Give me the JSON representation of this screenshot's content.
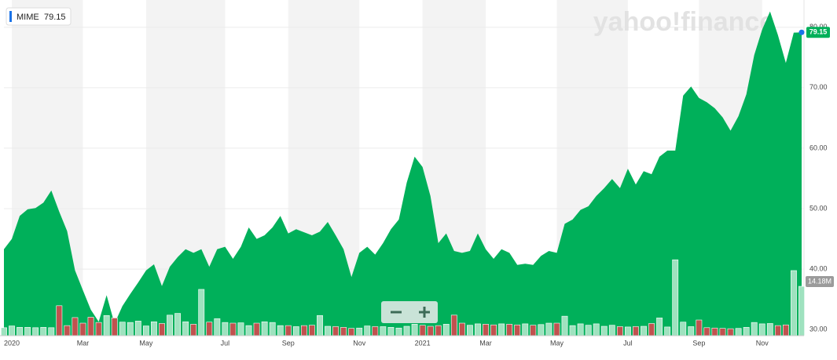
{
  "chart_data": {
    "type": "area",
    "watermark": "yahoo!finance",
    "categories": [
      null,
      "2020",
      null,
      null,
      null,
      null,
      null,
      null,
      null,
      null,
      "Mar",
      null,
      null,
      null,
      null,
      null,
      null,
      null,
      "May",
      null,
      null,
      null,
      null,
      null,
      null,
      null,
      null,
      null,
      "Jul",
      null,
      null,
      null,
      null,
      null,
      null,
      null,
      "Sep",
      null,
      null,
      null,
      null,
      null,
      null,
      null,
      null,
      "Nov",
      null,
      null,
      null,
      null,
      null,
      null,
      null,
      "2021",
      null,
      null,
      null,
      null,
      null,
      null,
      null,
      "Mar",
      null,
      null,
      null,
      null,
      null,
      null,
      null,
      null,
      "May",
      null,
      null,
      null,
      null,
      null,
      null,
      null,
      null,
      "Jul",
      null,
      null,
      null,
      null,
      null,
      null,
      null,
      null,
      "Sep",
      null,
      null,
      null,
      null,
      null,
      null,
      null,
      "Nov",
      null,
      null,
      null,
      null,
      null
    ],
    "series": [
      {
        "name": "MIME",
        "color": "#00b05a",
        "values": [
          43.3,
          45,
          48.8,
          49.9,
          50.1,
          51,
          53,
          49.5,
          46.3,
          39.8,
          36.5,
          33.3,
          31.3,
          35.7,
          31,
          33.9,
          35.9,
          37.8,
          39.8,
          40.8,
          37.2,
          40.4,
          42,
          43.3,
          42.7,
          43.3,
          40.4,
          43.3,
          43.7,
          41.7,
          43.7,
          46.9,
          45,
          45.6,
          46.9,
          48.8,
          45.9,
          46.6,
          46.1,
          45.6,
          46.2,
          47.8,
          45.6,
          43.3,
          38.7,
          42.7,
          43.7,
          42.4,
          44.3,
          46.6,
          48.2,
          54.3,
          58.6,
          56.9,
          52.1,
          44.3,
          45.9,
          43,
          42.7,
          43,
          45.9,
          43.3,
          41.7,
          43.3,
          42.7,
          40.7,
          40.9,
          40.7,
          42.2,
          43,
          42.7,
          47.5,
          48.2,
          49.8,
          50.4,
          52.1,
          53.4,
          54.9,
          53.4,
          56.6,
          54,
          56.2,
          55.7,
          58.6,
          59.6,
          59.6,
          68.7,
          70.2,
          68.3,
          67.6,
          66.6,
          65.1,
          62.9,
          65.3,
          68.9,
          75.4,
          79.6,
          82.6,
          78.7,
          74.1,
          79.1,
          79.15
        ],
        "value_labels": [
          null,
          null,
          null,
          null,
          null,
          null,
          null,
          null,
          null,
          null,
          null,
          null,
          null,
          null,
          null,
          null,
          null,
          null,
          null,
          null,
          null,
          null,
          null,
          null,
          null,
          null,
          null,
          null,
          null,
          null,
          null,
          null,
          null,
          null,
          null,
          null,
          null,
          null,
          null,
          null,
          null,
          null,
          null,
          null,
          null,
          null,
          null,
          null,
          null,
          null,
          null,
          null,
          null,
          null,
          null,
          null,
          null,
          null,
          null,
          null,
          null,
          null,
          null,
          null,
          null,
          null,
          null,
          null,
          null,
          null,
          null,
          null,
          null,
          null,
          null,
          null,
          null,
          null,
          null,
          null,
          null,
          null,
          null,
          null,
          null,
          null,
          null,
          null,
          null,
          null,
          null,
          null,
          null,
          null,
          null,
          null,
          null,
          null,
          null,
          null,
          null,
          "79.15"
        ]
      },
      {
        "type": "bar",
        "axis": "y2",
        "up_color": "#9fe2bf",
        "down_color": "#c0524f",
        "values": [
          2.3,
          2.8,
          2.4,
          2.4,
          2.3,
          2.4,
          2.3,
          8.6,
          2.9,
          5.2,
          3.6,
          5.3,
          3.8,
          5.8,
          5.1,
          3.9,
          3.8,
          4.2,
          2.8,
          4.0,
          3.5,
          5.9,
          6.4,
          4.0,
          3.3,
          13.3,
          3.9,
          4.9,
          3.8,
          3.6,
          3.7,
          2.9,
          3.6,
          4.0,
          3.8,
          2.9,
          2.9,
          2.6,
          2.9,
          3.0,
          5.8,
          2.7,
          2.6,
          2.4,
          2.1,
          2.2,
          2.8,
          2.6,
          2.6,
          2.4,
          2.2,
          2.7,
          3.3,
          3.0,
          2.7,
          2.9,
          3.3,
          5.9,
          3.6,
          3.0,
          3.4,
          3.3,
          3.1,
          3.4,
          3.3,
          3.1,
          3.4,
          3.0,
          3.2,
          3.6,
          3.6,
          5.6,
          2.9,
          3.4,
          3.0,
          3.4,
          2.7,
          3.0,
          2.6,
          2.5,
          2.6,
          2.7,
          3.5,
          5.1,
          2.5,
          21.8,
          3.9,
          2.6,
          4.5,
          2.3,
          2.2,
          2.1,
          2.0,
          2.1,
          2.4,
          3.8,
          3.4,
          3.5,
          2.9,
          3.1,
          18.7,
          14.18
        ],
        "value_labels": [
          null,
          null,
          null,
          null,
          null,
          null,
          null,
          null,
          null,
          null,
          null,
          null,
          null,
          null,
          null,
          null,
          null,
          null,
          null,
          null,
          null,
          null,
          null,
          null,
          null,
          null,
          null,
          null,
          null,
          null,
          null,
          null,
          null,
          null,
          null,
          null,
          null,
          null,
          null,
          null,
          null,
          null,
          null,
          null,
          null,
          null,
          null,
          null,
          null,
          null,
          null,
          null,
          null,
          null,
          null,
          null,
          null,
          null,
          null,
          null,
          null,
          null,
          null,
          null,
          null,
          null,
          null,
          null,
          null,
          null,
          null,
          null,
          null,
          null,
          null,
          null,
          null,
          null,
          null,
          null,
          null,
          null,
          null,
          null,
          null,
          null,
          null,
          null,
          null,
          null,
          null,
          null,
          null,
          null,
          null,
          null,
          null,
          null,
          null,
          null,
          null,
          "14.18M"
        ]
      }
    ],
    "ylim": [
      29,
      84.5
    ],
    "yticks": [
      {
        "value": 30,
        "label": "30.00"
      },
      {
        "value": 40,
        "label": "40.00"
      },
      {
        "value": 50,
        "label": "50.00"
      },
      {
        "value": 60,
        "label": "60.00"
      },
      {
        "value": 70,
        "label": "70.00"
      },
      {
        "value": 80,
        "label": "80.00"
      }
    ],
    "y2lim": [
      0,
      96.4
    ],
    "grid": true
  }
}
